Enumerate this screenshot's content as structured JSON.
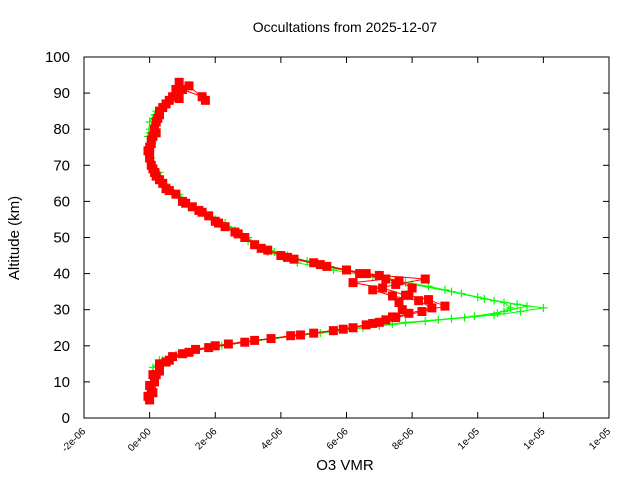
{
  "chart_data": {
    "type": "scatter",
    "title": "Occultations from 2025-12-07",
    "xlabel": "O3 VMR",
    "ylabel": "Altitude (km)",
    "xlim": [
      -2e-06,
      1.4e-05
    ],
    "ylim": [
      0,
      100
    ],
    "x_tick_values": [
      -2e-06,
      0,
      2e-06,
      4e-06,
      6e-06,
      8e-06,
      1e-05,
      1.2e-05,
      1.4e-05
    ],
    "x_tick_labels": [
      "-2e-06",
      "0e+00",
      "2e-06",
      "4e-06",
      "6e-06",
      "8e-06",
      "1e-05",
      "1e-05",
      "1e-05"
    ],
    "y_tick_values": [
      0,
      10,
      20,
      30,
      40,
      50,
      60,
      70,
      80,
      90,
      100
    ],
    "y_tick_labels": [
      "0",
      "10",
      "20",
      "30",
      "40",
      "50",
      "60",
      "70",
      "80",
      "90",
      "100"
    ],
    "grid": false,
    "legend": null,
    "series": [
      {
        "name": "green-profiles",
        "color": "#00ff00",
        "marker": "plus",
        "line": true,
        "profiles": [
          [
            [
              0.0,
              6
            ],
            [
              0.05,
              10
            ],
            [
              0.1,
              14
            ],
            [
              0.3,
              16
            ],
            [
              0.8,
              17.5
            ],
            [
              1.5,
              19
            ],
            [
              2.5,
              20.5
            ],
            [
              3.8,
              22
            ],
            [
              5.2,
              23.5
            ],
            [
              6.5,
              25
            ],
            [
              7.8,
              26.5
            ],
            [
              9.2,
              27.5
            ],
            [
              10.5,
              28.5
            ],
            [
              11.3,
              29.5
            ],
            [
              12.0,
              30.5
            ],
            [
              11.2,
              31.5
            ],
            [
              10.2,
              33
            ],
            [
              9.2,
              35
            ],
            [
              8.0,
              37
            ],
            [
              6.8,
              39
            ],
            [
              5.6,
              41
            ],
            [
              4.5,
              43
            ],
            [
              3.6,
              46
            ],
            [
              3.0,
              50
            ],
            [
              2.3,
              54
            ],
            [
              1.7,
              57
            ],
            [
              1.1,
              60
            ],
            [
              0.6,
              64
            ],
            [
              0.3,
              68
            ],
            [
              0.05,
              72
            ],
            [
              0.0,
              76
            ],
            [
              0.0,
              80
            ],
            [
              0.1,
              83
            ],
            [
              0.3,
              86
            ],
            [
              0.7,
              89
            ],
            [
              0.9,
              92
            ]
          ],
          [
            [
              0.0,
              7
            ],
            [
              0.1,
              12
            ],
            [
              0.4,
              16
            ],
            [
              1.0,
              18
            ],
            [
              1.8,
              19.5
            ],
            [
              2.8,
              21
            ],
            [
              4.2,
              22.5
            ],
            [
              5.6,
              24
            ],
            [
              7.0,
              25.5
            ],
            [
              8.4,
              26.8
            ],
            [
              9.6,
              27.8
            ],
            [
              10.6,
              29
            ],
            [
              11.0,
              30.5
            ],
            [
              10.8,
              32
            ],
            [
              10.0,
              33.5
            ],
            [
              9.0,
              35.5
            ],
            [
              7.8,
              37.5
            ],
            [
              6.5,
              40
            ],
            [
              5.3,
              42
            ],
            [
              4.2,
              45
            ],
            [
              3.2,
              48
            ],
            [
              2.6,
              52
            ],
            [
              2.0,
              55
            ],
            [
              1.4,
              58
            ],
            [
              0.9,
              62
            ],
            [
              0.4,
              66
            ],
            [
              0.1,
              70
            ],
            [
              0.0,
              74
            ],
            [
              -0.05,
              78
            ],
            [
              0.0,
              82
            ],
            [
              0.2,
              85
            ],
            [
              0.5,
              88
            ],
            [
              0.8,
              90
            ]
          ],
          [
            [
              0.05,
              8
            ],
            [
              0.2,
              14
            ],
            [
              0.6,
              17
            ],
            [
              1.3,
              19
            ],
            [
              2.2,
              20
            ],
            [
              3.3,
              21.5
            ],
            [
              4.6,
              23
            ],
            [
              6.0,
              24.5
            ],
            [
              7.4,
              26
            ],
            [
              8.8,
              27.2
            ],
            [
              9.9,
              28.2
            ],
            [
              10.8,
              29.5
            ],
            [
              11.5,
              31
            ],
            [
              10.5,
              32.5
            ],
            [
              9.5,
              34.5
            ],
            [
              8.5,
              36.5
            ],
            [
              7.2,
              38.5
            ],
            [
              6.0,
              41
            ],
            [
              4.8,
              43.5
            ],
            [
              3.8,
              46
            ],
            [
              3.0,
              49
            ],
            [
              2.4,
              53
            ],
            [
              1.8,
              56
            ],
            [
              1.2,
              59
            ],
            [
              0.7,
              63
            ],
            [
              0.3,
              67
            ],
            [
              0.05,
              71
            ],
            [
              -0.05,
              75
            ],
            [
              0.0,
              79
            ],
            [
              0.15,
              84
            ],
            [
              0.4,
              87
            ],
            [
              0.7,
              90
            ]
          ]
        ]
      },
      {
        "name": "red-profiles",
        "color": "#ff0000",
        "marker": "filled-square",
        "line": true,
        "profiles": [
          [
            [
              -0.05,
              6
            ],
            [
              0.0,
              9
            ],
            [
              0.1,
              12
            ],
            [
              0.3,
              15
            ],
            [
              0.7,
              17
            ],
            [
              1.4,
              19
            ],
            [
              2.4,
              20.5
            ],
            [
              3.7,
              22
            ],
            [
              5.0,
              23.5
            ],
            [
              6.2,
              25
            ],
            [
              7.0,
              26.5
            ],
            [
              7.4,
              28
            ],
            [
              7.7,
              30
            ],
            [
              7.6,
              32
            ],
            [
              7.9,
              34
            ],
            [
              8.0,
              36
            ],
            [
              7.6,
              38
            ],
            [
              6.6,
              40
            ],
            [
              5.4,
              42
            ],
            [
              4.4,
              44
            ],
            [
              3.6,
              46.5
            ],
            [
              2.9,
              50
            ],
            [
              2.3,
              53
            ],
            [
              1.8,
              56
            ],
            [
              1.3,
              58.5
            ],
            [
              0.8,
              62
            ],
            [
              0.4,
              65
            ],
            [
              0.15,
              68
            ],
            [
              0.0,
              72
            ],
            [
              0.0,
              75
            ],
            [
              0.1,
              78
            ],
            [
              0.2,
              82
            ],
            [
              0.3,
              85
            ],
            [
              0.6,
              88
            ],
            [
              0.8,
              91
            ],
            [
              0.9,
              93
            ]
          ],
          [
            [
              0.0,
              5
            ],
            [
              0.05,
              8
            ],
            [
              0.2,
              12
            ],
            [
              0.5,
              15.5
            ],
            [
              1.0,
              17.8
            ],
            [
              1.8,
              19.5
            ],
            [
              2.9,
              21
            ],
            [
              4.3,
              22.8
            ],
            [
              5.6,
              24.2
            ],
            [
              6.6,
              25.8
            ],
            [
              7.2,
              27.2
            ],
            [
              7.9,
              29
            ],
            [
              8.6,
              30.5
            ],
            [
              8.2,
              32.5
            ],
            [
              7.4,
              33.8
            ],
            [
              6.8,
              35.5
            ],
            [
              7.5,
              37
            ],
            [
              8.4,
              38.5
            ],
            [
              7.0,
              39.5
            ],
            [
              6.0,
              41
            ],
            [
              5.0,
              43
            ],
            [
              4.0,
              45
            ],
            [
              3.2,
              48
            ],
            [
              2.6,
              51.5
            ],
            [
              2.0,
              54.5
            ],
            [
              1.5,
              57.5
            ],
            [
              1.0,
              60
            ],
            [
              0.5,
              63.5
            ],
            [
              0.2,
              67
            ],
            [
              0.05,
              70
            ],
            [
              -0.05,
              74
            ],
            [
              0.05,
              77
            ],
            [
              0.15,
              80
            ],
            [
              0.25,
              83
            ],
            [
              0.4,
              86
            ],
            [
              0.7,
              89
            ],
            [
              1.0,
              91
            ],
            [
              1.6,
              89
            ]
          ],
          [
            [
              0.1,
              7
            ],
            [
              0.15,
              10
            ],
            [
              0.3,
              13
            ],
            [
              0.6,
              16
            ],
            [
              1.2,
              18.2
            ],
            [
              2.0,
              20
            ],
            [
              3.2,
              21.5
            ],
            [
              4.6,
              23
            ],
            [
              5.9,
              24.6
            ],
            [
              6.8,
              26.2
            ],
            [
              7.5,
              27.8
            ],
            [
              8.3,
              29.5
            ],
            [
              9.0,
              31
            ],
            [
              8.5,
              32.8
            ],
            [
              7.8,
              34
            ],
            [
              7.1,
              36
            ],
            [
              6.2,
              37.5
            ],
            [
              7.2,
              38.5
            ],
            [
              6.4,
              40
            ],
            [
              5.2,
              42.5
            ],
            [
              4.2,
              44.5
            ],
            [
              3.4,
              47
            ],
            [
              2.7,
              51
            ],
            [
              2.1,
              54
            ],
            [
              1.6,
              57
            ],
            [
              1.1,
              59.5
            ],
            [
              0.6,
              63
            ],
            [
              0.3,
              66
            ],
            [
              0.1,
              69
            ],
            [
              0.0,
              73
            ],
            [
              0.05,
              76
            ],
            [
              0.2,
              79
            ],
            [
              0.3,
              84
            ],
            [
              0.5,
              87
            ],
            [
              0.9,
              88.5
            ],
            [
              1.2,
              92
            ],
            [
              1.7,
              88
            ]
          ]
        ]
      }
    ]
  }
}
